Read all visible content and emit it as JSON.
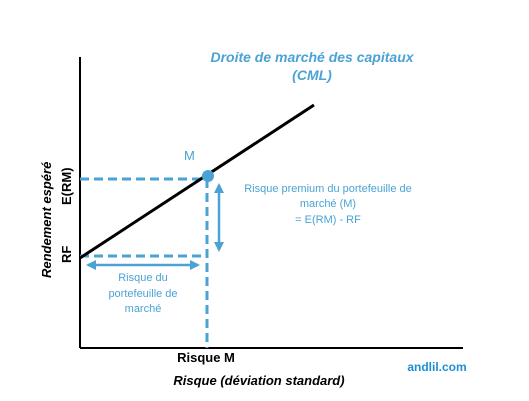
{
  "colors": {
    "line": "#000000",
    "accent": "#4aa3d4",
    "axis": "#000000",
    "brand": "#1f8fd6"
  },
  "title": {
    "line1": "Droite de marché des capitaux",
    "line2": "(CML)"
  },
  "axes": {
    "ylabel": "Rendement espéré",
    "xlabel": "Risque (déviation standard)",
    "y_tick_erm": "E(RM)",
    "y_tick_rf": "RF",
    "x_tick_m": "Risque M"
  },
  "point": {
    "label": "M"
  },
  "annotations": {
    "premium_line1": "Risque premium du portefeuille de",
    "premium_line2": "marché (M)",
    "premium_line3": "= E(RM) - RF",
    "risk_line1": "Risque du",
    "risk_line2": "portefeuille de",
    "risk_line3": "marché"
  },
  "brand": "andlil.com"
}
